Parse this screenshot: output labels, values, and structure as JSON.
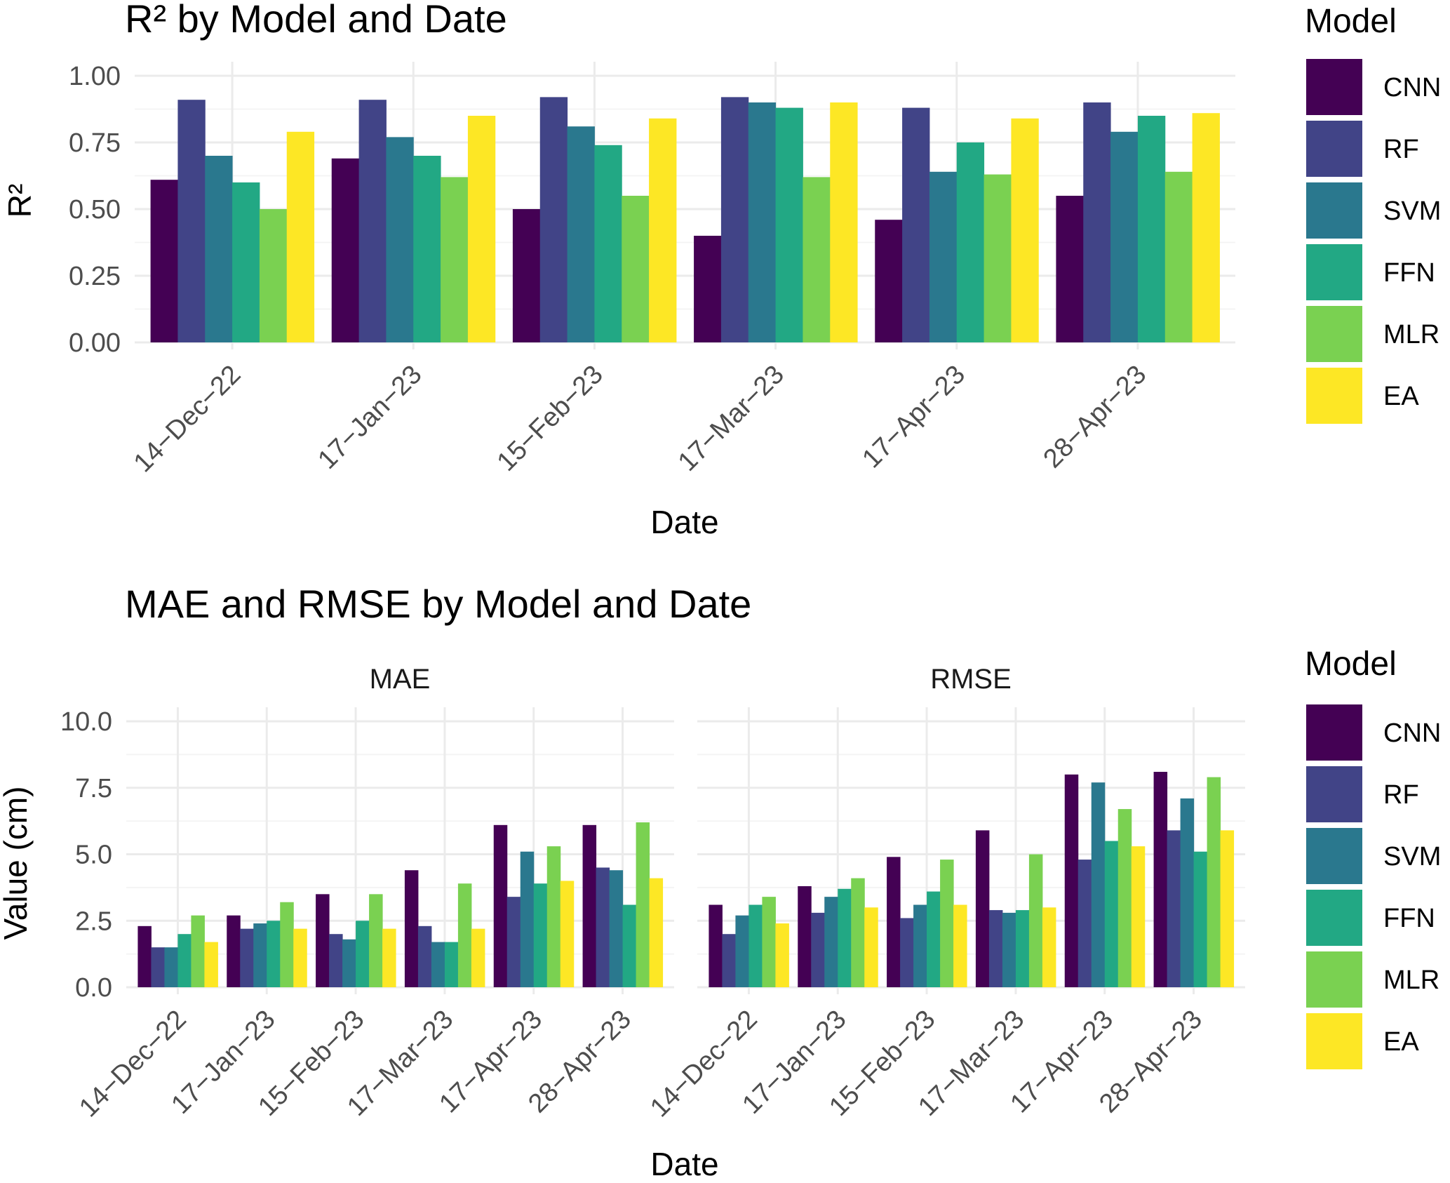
{
  "chart_data": [
    {
      "type": "bar",
      "title": "R² by Model and Date",
      "xlabel": "Date",
      "ylabel": "R²",
      "ylim": [
        0,
        1.0
      ],
      "yticks": [
        "0.00",
        "0.25",
        "0.50",
        "0.75",
        "1.00"
      ],
      "ytick_values": [
        0,
        0.25,
        0.5,
        0.75,
        1.0
      ],
      "categories": [
        "14−Dec−22",
        "17−Jan−23",
        "15−Feb−23",
        "17−Mar−23",
        "17−Apr−23",
        "28−Apr−23"
      ],
      "series": [
        {
          "name": "CNN",
          "values": [
            0.61,
            0.69,
            0.5,
            0.4,
            0.46,
            0.55
          ]
        },
        {
          "name": "RF",
          "values": [
            0.91,
            0.91,
            0.92,
            0.92,
            0.88,
            0.9
          ]
        },
        {
          "name": "SVM",
          "values": [
            0.7,
            0.77,
            0.81,
            0.9,
            0.64,
            0.79
          ]
        },
        {
          "name": "FFN",
          "values": [
            0.6,
            0.7,
            0.74,
            0.88,
            0.75,
            0.85
          ]
        },
        {
          "name": "MLR",
          "values": [
            0.5,
            0.62,
            0.55,
            0.62,
            0.63,
            0.64
          ]
        },
        {
          "name": "EA",
          "values": [
            0.79,
            0.85,
            0.84,
            0.9,
            0.84,
            0.86
          ]
        }
      ],
      "legend": {
        "title": "Model",
        "position": "right"
      }
    },
    {
      "type": "bar",
      "title": "MAE and RMSE by Model and Date",
      "xlabel": "Date",
      "ylabel": "Value (cm)",
      "ylim": [
        0,
        10.0
      ],
      "yticks": [
        "0.0",
        "2.5",
        "5.0",
        "7.5",
        "10.0"
      ],
      "ytick_values": [
        0,
        2.5,
        5.0,
        7.5,
        10.0
      ],
      "categories": [
        "14−Dec−22",
        "17−Jan−23",
        "15−Feb−23",
        "17−Mar−23",
        "17−Apr−23",
        "28−Apr−23"
      ],
      "facets": [
        {
          "label": "MAE",
          "series": [
            {
              "name": "CNN",
              "values": [
                2.3,
                2.7,
                3.5,
                4.4,
                6.1,
                6.1
              ]
            },
            {
              "name": "RF",
              "values": [
                1.5,
                2.2,
                2.0,
                2.3,
                3.4,
                4.5
              ]
            },
            {
              "name": "SVM",
              "values": [
                1.5,
                2.4,
                1.8,
                1.7,
                5.1,
                4.4
              ]
            },
            {
              "name": "FFN",
              "values": [
                2.0,
                2.5,
                2.5,
                1.7,
                3.9,
                3.1
              ]
            },
            {
              "name": "MLR",
              "values": [
                2.7,
                3.2,
                3.5,
                3.9,
                5.3,
                6.2
              ]
            },
            {
              "name": "EA",
              "values": [
                1.7,
                2.2,
                2.2,
                2.2,
                4.0,
                4.1
              ]
            }
          ]
        },
        {
          "label": "RMSE",
          "series": [
            {
              "name": "CNN",
              "values": [
                3.1,
                3.8,
                4.9,
                5.9,
                8.0,
                8.1
              ]
            },
            {
              "name": "RF",
              "values": [
                2.0,
                2.8,
                2.6,
                2.9,
                4.8,
                5.9
              ]
            },
            {
              "name": "SVM",
              "values": [
                2.7,
                3.4,
                3.1,
                2.8,
                7.7,
                7.1
              ]
            },
            {
              "name": "FFN",
              "values": [
                3.1,
                3.7,
                3.6,
                2.9,
                5.5,
                5.1
              ]
            },
            {
              "name": "MLR",
              "values": [
                3.4,
                4.1,
                4.8,
                5.0,
                6.7,
                7.9
              ]
            },
            {
              "name": "EA",
              "values": [
                2.4,
                3.0,
                3.1,
                3.0,
                5.3,
                5.9
              ]
            }
          ]
        }
      ],
      "legend": {
        "title": "Model",
        "position": "right"
      }
    }
  ],
  "colors": {
    "CNN": "#440154",
    "RF": "#414487",
    "SVM": "#2A788E",
    "FFN": "#22A884",
    "MLR": "#7AD151",
    "EA": "#FDE725",
    "grid_major": "#ebebeb",
    "grid_minor": "#f4f4f4",
    "background": "#ffffff"
  }
}
